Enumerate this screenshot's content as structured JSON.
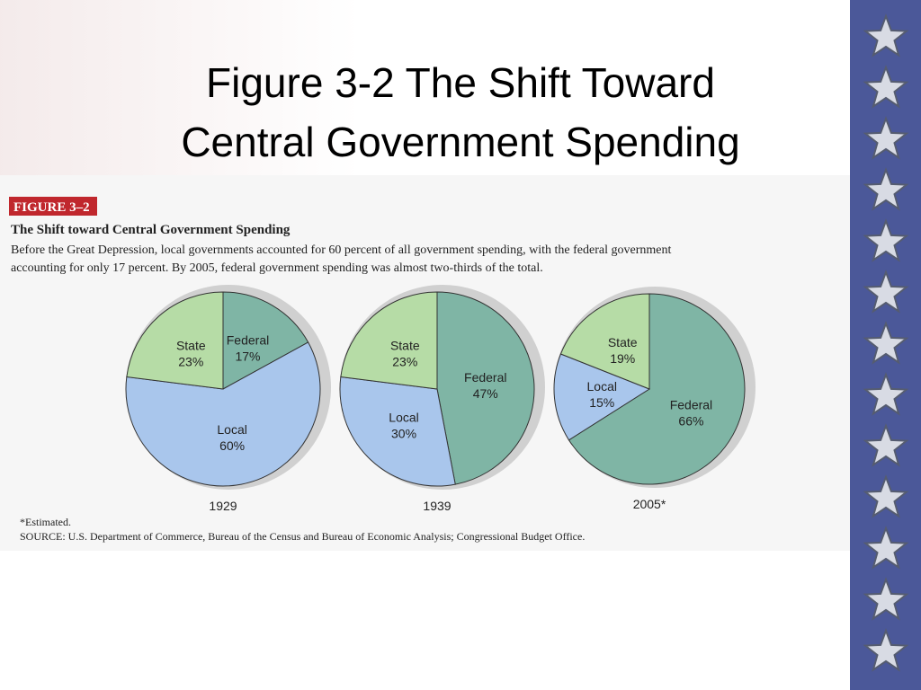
{
  "slide_title_lines": [
    "Figure 3-2 The Shift Toward",
    "Central Government Spending"
  ],
  "figure_label": "FIGURE 3–2",
  "figure_title": "The Shift toward Central Government Spending",
  "figure_description_lines": [
    "Before the Great Depression, local governments accounted for 60 percent of all government spending, with the federal government",
    "accounting for only 17 percent. By 2005, federal government spending was almost two-thirds of the total."
  ],
  "footnote": "*Estimated.",
  "source": "SOURCE: U.S. Department of Commerce, Bureau of the Census and Bureau of Economic Analysis; Congressional Budget Office.",
  "chart_data": [
    {
      "type": "pie",
      "title": "1929",
      "categories": [
        "Federal",
        "Local",
        "State"
      ],
      "values": [
        17,
        60,
        23
      ],
      "value_labels": [
        "17%",
        "60%",
        "23%"
      ],
      "colors": [
        "#7fb5a5",
        "#a9c6ec",
        "#b6dca6"
      ]
    },
    {
      "type": "pie",
      "title": "1939",
      "categories": [
        "Federal",
        "Local",
        "State"
      ],
      "values": [
        47,
        30,
        23
      ],
      "value_labels": [
        "47%",
        "30%",
        "23%"
      ],
      "colors": [
        "#7fb5a5",
        "#a9c6ec",
        "#b6dca6"
      ]
    },
    {
      "type": "pie",
      "title": "2005*",
      "categories": [
        "Federal",
        "Local",
        "State"
      ],
      "values": [
        66,
        15,
        19
      ],
      "value_labels": [
        "66%",
        "15%",
        "19%"
      ],
      "colors": [
        "#7fb5a5",
        "#a9c6ec",
        "#b6dca6"
      ]
    }
  ]
}
